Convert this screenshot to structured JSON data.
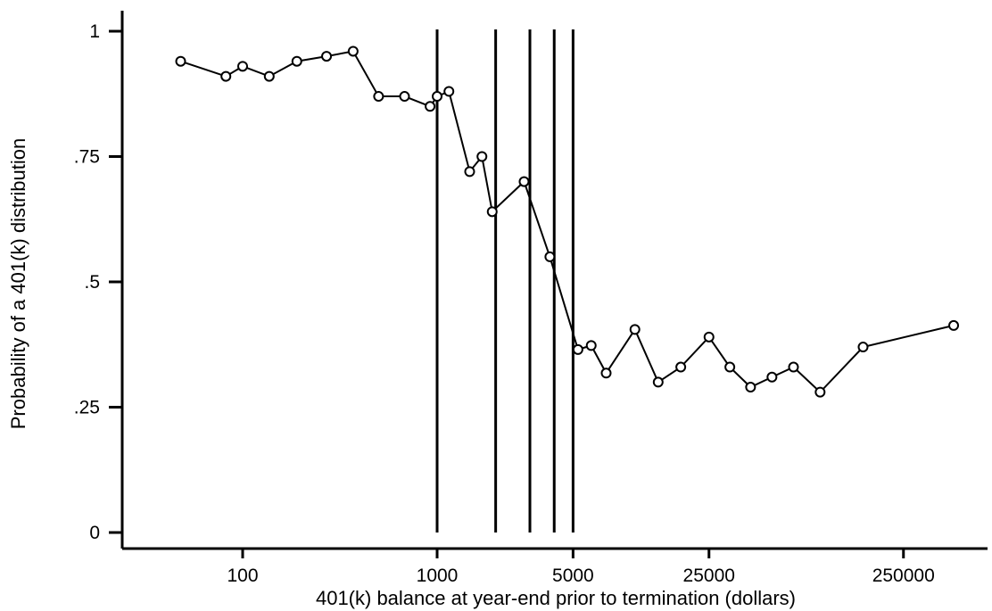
{
  "chart_data": {
    "type": "line",
    "title": "",
    "xlabel": "401(k) balance at year-end prior to termination (dollars)",
    "ylabel": "Probability of a 401(k) distribution",
    "x_scale": "log",
    "xlim": [
      30,
      600000
    ],
    "ylim": [
      0,
      1
    ],
    "x_ticks": [
      {
        "value": 100,
        "label": "100"
      },
      {
        "value": 1000,
        "label": "1000"
      },
      {
        "value": 5000,
        "label": "5000"
      },
      {
        "value": 25000,
        "label": "25000"
      },
      {
        "value": 250000,
        "label": "250000"
      }
    ],
    "y_ticks": [
      {
        "value": 0,
        "label": "0"
      },
      {
        "value": 0.25,
        "label": ".25"
      },
      {
        "value": 0.5,
        "label": ".5"
      },
      {
        "value": 0.75,
        "label": ".75"
      },
      {
        "value": 1,
        "label": "1"
      }
    ],
    "vertical_lines": [
      1000,
      2000,
      3000,
      4000,
      5000
    ],
    "grid": false,
    "marker": "hollow-circle",
    "line_color": "#000000",
    "series": [
      {
        "x": [
          48,
          82,
          100,
          137,
          190,
          270,
          370,
          500,
          680,
          920,
          1000,
          1150,
          1470,
          1700,
          1920,
          2800,
          3800,
          5300,
          6200,
          7400,
          10400,
          13700,
          17900,
          25000,
          32000,
          40900,
          52700,
          68000,
          93200,
          155000,
          453000
        ],
        "y": [
          0.94,
          0.91,
          0.93,
          0.91,
          0.94,
          0.95,
          0.96,
          0.87,
          0.87,
          0.85,
          0.87,
          0.88,
          0.72,
          0.75,
          0.64,
          0.7,
          0.55,
          0.365,
          0.373,
          0.318,
          0.405,
          0.3,
          0.33,
          0.39,
          0.33,
          0.29,
          0.31,
          0.33,
          0.28,
          0.37,
          0.413
        ]
      }
    ]
  }
}
